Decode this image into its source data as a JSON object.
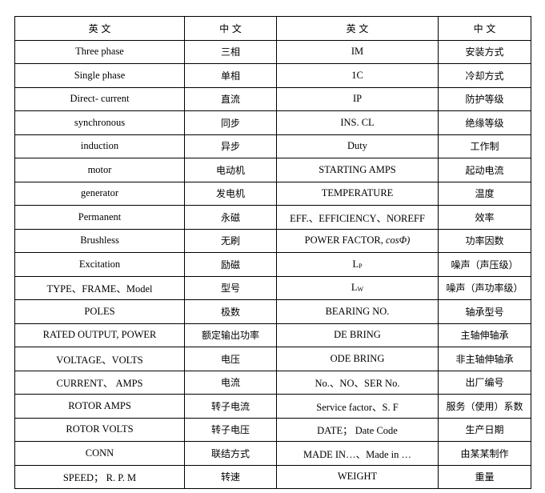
{
  "header": [
    "英 文",
    "中 文",
    "英 文",
    "中 文"
  ],
  "rows": [
    {
      "en1": "Three phase",
      "cn1": "三相",
      "en2": "IM",
      "cn2": "安装方式"
    },
    {
      "en1": "Single phase",
      "cn1": "单相",
      "en2": "1C",
      "cn2": "冷却方式"
    },
    {
      "en1": "Direct- current",
      "cn1": "直流",
      "en2": "IP",
      "cn2": "防护等级"
    },
    {
      "en1": "synchronous",
      "cn1": "同步",
      "en2": "INS. CL",
      "cn2": "绝缘等级"
    },
    {
      "en1": "induction",
      "cn1": "异步",
      "en2": "Duty",
      "cn2": "工作制"
    },
    {
      "en1": "motor",
      "cn1": "电动机",
      "en2": "STARTING AMPS",
      "cn2": "起动电流"
    },
    {
      "en1": "generator",
      "cn1": "发电机",
      "en2": "TEMPERATURE",
      "cn2": "温度"
    },
    {
      "en1": "Permanent",
      "cn1": "永磁",
      "en2": "EFF.、EFFICIENCY、NOREFF",
      "cn2": "效率"
    },
    {
      "en1": "Brushless",
      "cn1": "无刷",
      "en2": "POWER FACTOR, ",
      "en2_italic": "cosΦ)",
      "cn2": "功率因数"
    },
    {
      "en1": "Excitation",
      "cn1": "励磁",
      "en2": "L",
      "en2_sub": "P",
      "cn2": "噪声（声压级）"
    },
    {
      "en1": "TYPE、FRAME、Model",
      "cn1": "型号",
      "en2": "L",
      "en2_sub": "W",
      "cn2": "噪声（声功率级）"
    },
    {
      "en1": "POLES",
      "cn1": "极数",
      "en2": "BEARING NO.",
      "cn2": "轴承型号"
    },
    {
      "en1": "RATED OUTPUT,  POWER",
      "cn1": "额定输出功率",
      "en2": "DE BRING",
      "cn2": "主轴伸轴承"
    },
    {
      "en1": "VOLTAGE、VOLTS",
      "cn1": "电压",
      "en2": "ODE BRING",
      "cn2": "非主轴伸轴承"
    },
    {
      "en1": "CURRENT、 AMPS",
      "cn1": "电流",
      "en2": "No.、NO、SER No.",
      "cn2": "出厂编号"
    },
    {
      "en1": "ROTOR AMPS",
      "cn1": "转子电流",
      "en2": "Service factor、S. F",
      "cn2": "服务（使用）系数"
    },
    {
      "en1": "ROTOR VOLTS",
      "cn1": "转子电压",
      "en2": "DATE；  Date Code",
      "cn2": "生产日期"
    },
    {
      "en1": "CONN",
      "cn1": "联结方式",
      "en2": "MADE IN…、Made in …",
      "cn2": "由某某制作"
    },
    {
      "en1": "SPEED；  R. P. M",
      "cn1": "转速",
      "en2": "WEIGHT",
      "cn2": "重量"
    }
  ]
}
